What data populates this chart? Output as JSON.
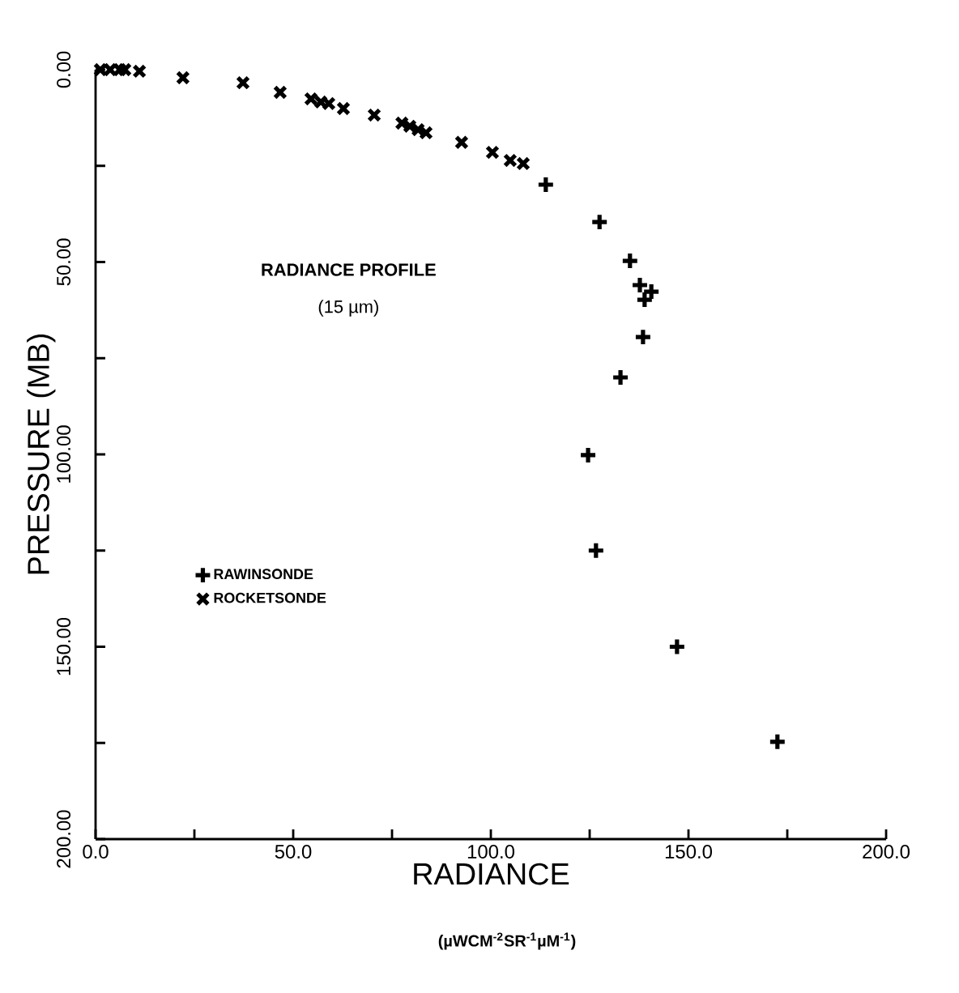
{
  "chart_data": {
    "type": "scatter",
    "title": "RADIANCE PROFILE",
    "subtitle": "(15 µm)",
    "xlabel": "RADIANCE",
    "ylabel": "PRESSURE (MB)",
    "annotations": [
      "(µWCM$^{-2}$SR$^{-1}$µM$^{-1}$)"
    ],
    "xlim": [
      0,
      200
    ],
    "ylim": [
      200,
      0
    ],
    "xticks": [
      {
        "value": 0,
        "label": "0.0"
      },
      {
        "value": 25,
        "label": null
      },
      {
        "value": 50,
        "label": "50.0"
      },
      {
        "value": 75,
        "label": null
      },
      {
        "value": 100,
        "label": "100.0"
      },
      {
        "value": 125,
        "label": null
      },
      {
        "value": 150,
        "label": "150.0"
      },
      {
        "value": 175,
        "label": null
      },
      {
        "value": 200,
        "label": "200.0"
      }
    ],
    "yticks": [
      {
        "value": 0,
        "label": "0.00"
      },
      {
        "value": 25,
        "label": null
      },
      {
        "value": 50,
        "label": "50.00"
      },
      {
        "value": 75,
        "label": null
      },
      {
        "value": 100,
        "label": "100.00"
      },
      {
        "value": 125,
        "label": null
      },
      {
        "value": 150,
        "label": "150.00"
      },
      {
        "value": 175,
        "label": null
      },
      {
        "value": 200,
        "label": "200.00"
      }
    ],
    "legend": "left",
    "grid": false,
    "series": [
      {
        "name": "RAWINSONDE",
        "color": "#000000",
        "x": [
          113.9,
          127.5,
          135.2,
          137.7,
          140.6,
          138.9,
          138.5,
          132.8,
          124.6,
          126.6,
          147.1,
          172.5
        ],
        "values": [
          29.9,
          39.6,
          49.7,
          56,
          57.7,
          59.8,
          69.5,
          80,
          100.2,
          125,
          150,
          174.7
        ]
      },
      {
        "name": "ROCKETSONDE",
        "color": "#000000",
        "x": [
          1.2,
          3.7,
          6.1,
          7.4,
          11.1,
          22.1,
          37.3,
          46.7,
          54.5,
          57,
          59,
          62.7,
          70.5,
          77.5,
          79.5,
          81.6,
          83.6,
          92.6,
          100.4,
          104.9,
          108.2
        ],
        "values": [
          0,
          0,
          0,
          0,
          0.4,
          2.1,
          3.4,
          5.9,
          7.6,
          8.4,
          8.8,
          10.1,
          11.8,
          13.9,
          14.7,
          15.6,
          16.4,
          18.9,
          21.5,
          23.6,
          24.4
        ]
      }
    ]
  }
}
